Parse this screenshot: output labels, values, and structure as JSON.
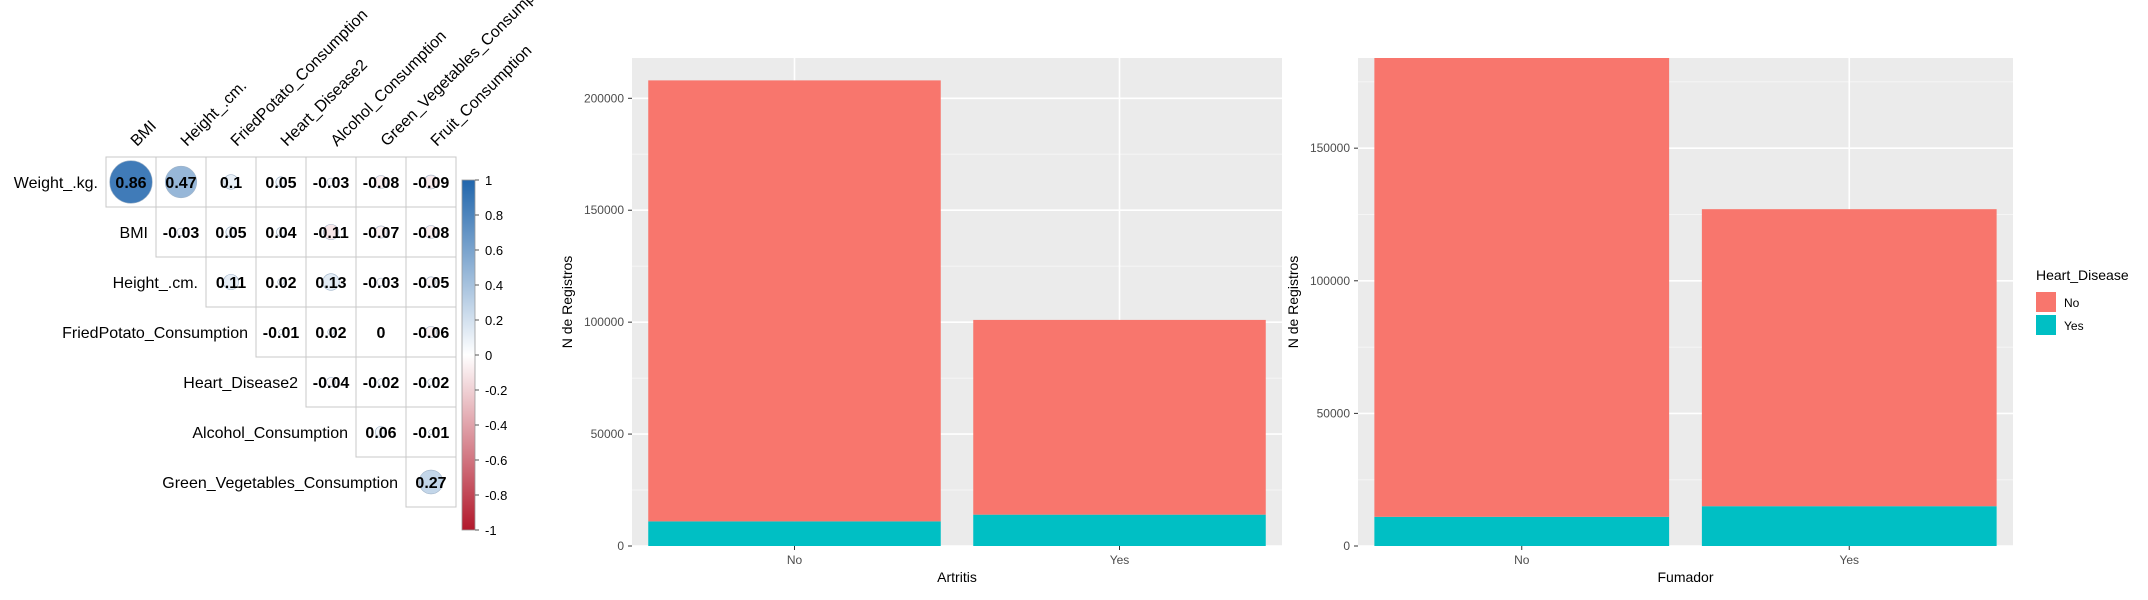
{
  "chart_data": [
    {
      "type": "heatmap",
      "title": "",
      "variables_top": [
        "BMI",
        "Height_.cm.",
        "FriedPotato_Consumption",
        "Heart_Disease2",
        "Alcohol_Consumption",
        "Green_Vegetables_Consumption",
        "Fruit_Consumption"
      ],
      "variables_left": [
        "Weight_.kg.",
        "BMI",
        "Height_.cm.",
        "FriedPotato_Consumption",
        "Heart_Disease2",
        "Alcohol_Consumption",
        "Green_Vegetables_Consumption"
      ],
      "rows": [
        [
          "0.86",
          "0.47",
          "0.1",
          "0.05",
          "-0.03",
          "-0.08",
          "-0.09"
        ],
        [
          "",
          "-0.03",
          "0.05",
          "0.04",
          "-0.11",
          "-0.07",
          "-0.08"
        ],
        [
          "",
          "",
          "0.11",
          "0.02",
          "0.13",
          "-0.03",
          "-0.05"
        ],
        [
          "",
          "",
          "",
          "-0.01",
          "0.02",
          "0",
          "-0.06"
        ],
        [
          "",
          "",
          "",
          "",
          "-0.04",
          "-0.02",
          "-0.02"
        ],
        [
          "",
          "",
          "",
          "",
          "",
          "0.06",
          "-0.01"
        ],
        [
          "",
          "",
          "",
          "",
          "",
          "",
          "0.27"
        ]
      ],
      "colorbar_ticks": [
        "1",
        "0.8",
        "0.6",
        "0.4",
        "0.2",
        "0",
        "-0.2",
        "-0.4",
        "-0.6",
        "-0.8",
        "-1"
      ],
      "colors": {
        "positive": "#2166ac",
        "negative": "#b2182b",
        "neutral": "#ffffff"
      }
    },
    {
      "type": "bar",
      "stacked": true,
      "categories": [
        "No",
        "Yes"
      ],
      "xlabel": "Artritis",
      "ylabel": "N de Registros",
      "ylim": [
        0,
        218000
      ],
      "yticks": [
        0,
        50000,
        100000,
        150000,
        200000
      ],
      "series": [
        {
          "name": "No",
          "values": [
            197000,
            87000
          ],
          "color": "#F8766D"
        },
        {
          "name": "Yes",
          "values": [
            11000,
            14000
          ],
          "color": "#00BFC4"
        }
      ]
    },
    {
      "type": "bar",
      "stacked": true,
      "categories": [
        "No",
        "Yes"
      ],
      "xlabel": "Fumador",
      "ylabel": "N de Registros",
      "ylim": [
        0,
        184000
      ],
      "yticks": [
        0,
        50000,
        100000,
        150000
      ],
      "series": [
        {
          "name": "No",
          "values": [
            173000,
            112000
          ],
          "color": "#F8766D"
        },
        {
          "name": "Yes",
          "values": [
            11000,
            15000
          ],
          "color": "#00BFC4"
        }
      ],
      "legend": {
        "title": "Heart_Disease",
        "position": "right",
        "items": [
          "No",
          "Yes"
        ]
      }
    }
  ]
}
